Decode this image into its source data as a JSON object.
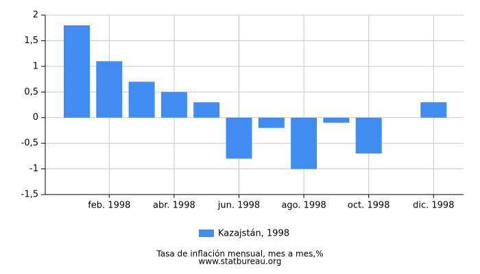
{
  "chart_data": {
    "type": "bar",
    "title": "Tasa de inflación mensual, mes a mes,%",
    "source": "www.statbureau.org",
    "categories": [
      null,
      "feb. 1998",
      null,
      "abr. 1998",
      null,
      "jun. 1998",
      null,
      "ago. 1998",
      null,
      "oct. 1998",
      null,
      "dic. 1998"
    ],
    "series": [
      {
        "name": "Kazajstán, 1998",
        "color": "#418cf0",
        "values": [
          1.8,
          1.1,
          0.7,
          0.5,
          0.3,
          -0.8,
          -0.2,
          -1.0,
          -0.1,
          -0.7,
          0,
          0.3
        ]
      }
    ],
    "ylim": [
      -1.5,
      2
    ],
    "yticks": [
      {
        "value": -1.5,
        "label": "-1,5"
      },
      -1,
      {
        "value": -0.5,
        "label": "-0,5"
      },
      0,
      {
        "value": 0.5,
        "label": "0,5"
      },
      1,
      {
        "value": 1.5,
        "label": "1,5"
      },
      2
    ],
    "grid": true
  }
}
